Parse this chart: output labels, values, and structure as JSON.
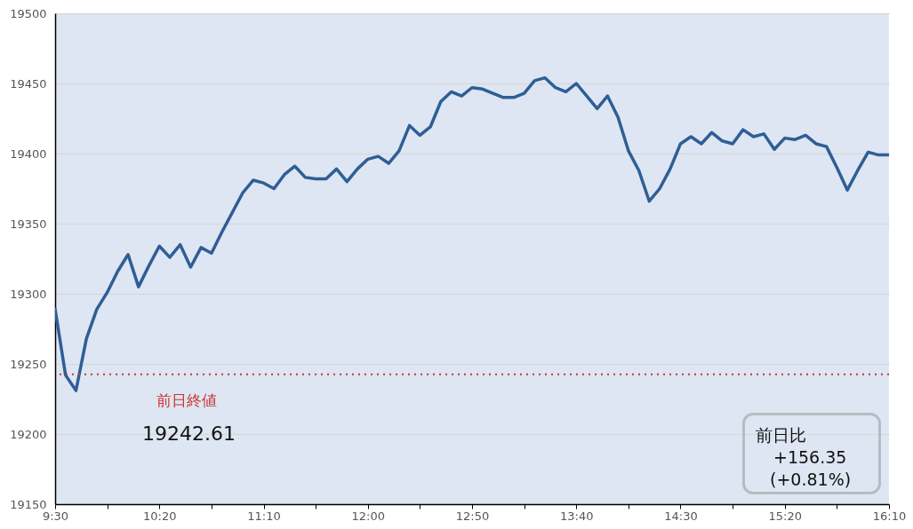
{
  "chart_data": {
    "type": "line",
    "x": [
      9.5,
      9.5833,
      9.6667,
      9.75,
      9.8333,
      9.9167,
      10,
      10.0833,
      10.1667,
      10.25,
      10.3333,
      10.4167,
      10.5,
      10.5833,
      10.6667,
      10.75,
      10.8333,
      10.9167,
      11,
      11.0833,
      11.1667,
      11.25,
      11.3333,
      11.4167,
      11.5,
      11.5833,
      11.6667,
      11.75,
      11.8333,
      11.9167,
      12,
      12.0833,
      12.1667,
      12.25,
      12.3333,
      12.4167,
      12.5,
      12.5833,
      12.6667,
      12.75,
      12.8333,
      12.9167,
      13,
      13.0833,
      13.1667,
      13.25,
      13.3333,
      13.4167,
      13.5,
      13.5833,
      13.6667,
      13.75,
      13.8333,
      13.9167,
      14,
      14.0833,
      14.1667,
      14.25,
      14.3333,
      14.4167,
      14.5,
      14.5833,
      14.6667,
      14.75,
      14.8333,
      14.9167,
      15,
      15.0833,
      15.1667,
      15.25,
      15.3333,
      15.4167,
      15.5,
      15.5833,
      15.6667,
      15.75,
      15.8333,
      15.9167,
      16,
      16.0833,
      16.1667
    ],
    "series": [
      {
        "color": "#2f5e96",
        "values": [
          19289,
          19242,
          19231,
          19268,
          19289,
          19301,
          19316,
          19328,
          19305,
          19320,
          19334,
          19326,
          19335,
          19319,
          19333,
          19329,
          19344,
          19358,
          19372,
          19381,
          19379,
          19375,
          19385,
          19391,
          19383,
          19382,
          19382,
          19389,
          19380,
          19389,
          19396,
          19398,
          19393,
          19402,
          19420,
          19413,
          19419,
          19437,
          19444,
          19441,
          19447,
          19446,
          19443,
          19440,
          19440,
          19443,
          19452,
          19454,
          19447,
          19444,
          19450,
          19441,
          19432,
          19441,
          19426,
          19402,
          19388,
          19366,
          19375,
          19389,
          19407,
          19412,
          19407,
          19415,
          19409,
          19407,
          19417,
          19412,
          19414,
          19403,
          19411,
          19410,
          19413,
          19407,
          19405,
          19390,
          19374,
          19388,
          19401,
          19399,
          19399
        ]
      }
    ],
    "xlim": [
      9.5,
      16.1667
    ],
    "xticks": [
      {
        "value": 9.5,
        "label": "9:30"
      },
      {
        "value": 9.9167,
        "label": null
      },
      {
        "value": 10.3333,
        "label": "10:20"
      },
      {
        "value": 10.75,
        "label": null
      },
      {
        "value": 11.1667,
        "label": "11:10"
      },
      {
        "value": 11.5833,
        "label": null
      },
      {
        "value": 12,
        "label": "12:00"
      },
      {
        "value": 12.4167,
        "label": null
      },
      {
        "value": 12.8333,
        "label": "12:50"
      },
      {
        "value": 13.25,
        "label": null
      },
      {
        "value": 13.6667,
        "label": "13:40"
      },
      {
        "value": 14.0833,
        "label": null
      },
      {
        "value": 14.5,
        "label": "14:30"
      },
      {
        "value": 14.9167,
        "label": null
      },
      {
        "value": 15.3333,
        "label": "15:20"
      },
      {
        "value": 15.75,
        "label": null
      },
      {
        "value": 16.1667,
        "label": "16:10"
      }
    ],
    "ylim": [
      19150,
      19500
    ],
    "yticks": [
      19150,
      19200,
      19250,
      19300,
      19350,
      19400,
      19450,
      19500
    ],
    "grid": "y",
    "ref_lines": [
      {
        "axis": "y",
        "value": 19242.61,
        "label": "前日終値",
        "color": "#cc3333",
        "line_style": "dotted"
      }
    ],
    "annotations": [
      "19242.61",
      "前日比",
      "+156.35",
      "(+0.81%)"
    ]
  }
}
